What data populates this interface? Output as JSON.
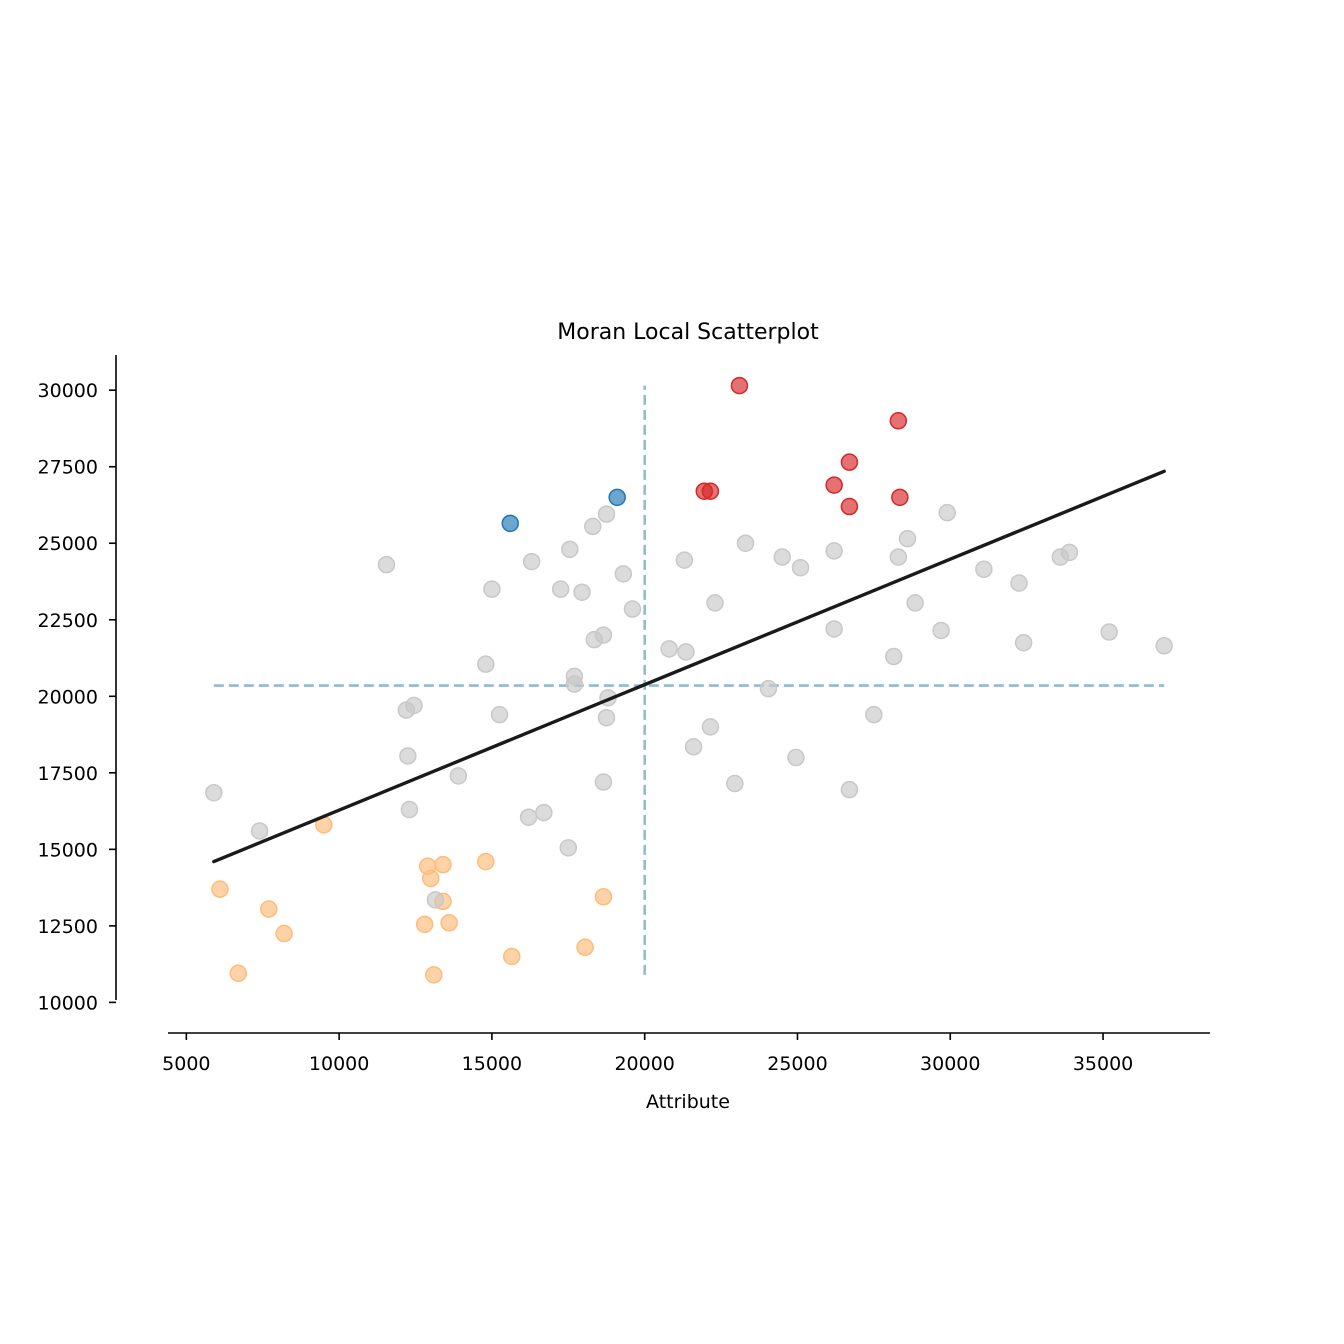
{
  "chart_data": {
    "type": "scatter",
    "title": "Moran Local Scatterplot",
    "xlabel": "Attribute",
    "ylabel": "",
    "xlim": [
      4400,
      38500
    ],
    "ylim": [
      9000,
      31150
    ],
    "xticks": [
      5000,
      10000,
      15000,
      20000,
      25000,
      30000,
      35000
    ],
    "yticks": [
      10000,
      12500,
      15000,
      17500,
      20000,
      22500,
      25000,
      27500,
      30000
    ],
    "xtick_labels": [
      "5000",
      "10000",
      "15000",
      "20000",
      "25000",
      "30000",
      "35000"
    ],
    "ytick_labels": [
      "10000",
      "12500",
      "15000",
      "17500",
      "20000",
      "22500",
      "25000",
      "27500",
      "30000"
    ],
    "grid": false,
    "mean_x": 20000,
    "mean_y": 20350,
    "vline_range": [
      10900,
      30150
    ],
    "hline_range": [
      5900,
      37000
    ],
    "fit_line": {
      "x": [
        5900,
        37000
      ],
      "y": [
        14600,
        27350
      ],
      "color": "#1a1a1a"
    },
    "reference_line_color": "#8fbcd4",
    "series": [
      {
        "color": "#d62728",
        "points": [
          [
            23100,
            30150
          ],
          [
            28300,
            29000
          ],
          [
            26700,
            27650
          ],
          [
            21950,
            26700
          ],
          [
            22150,
            26700
          ],
          [
            26200,
            26900
          ],
          [
            28350,
            26500
          ],
          [
            26700,
            26200
          ]
        ]
      },
      {
        "color": "#1f77b4",
        "points": [
          [
            15600,
            25650
          ],
          [
            19100,
            26500
          ]
        ]
      },
      {
        "color": "#ffbb78",
        "points": [
          [
            9500,
            15800
          ],
          [
            6100,
            13700
          ],
          [
            7700,
            13050
          ],
          [
            8200,
            12250
          ],
          [
            6700,
            10950
          ],
          [
            12900,
            14450
          ],
          [
            13400,
            14500
          ],
          [
            13000,
            14050
          ],
          [
            14800,
            14600
          ],
          [
            13400,
            13300
          ],
          [
            12800,
            12550
          ],
          [
            13600,
            12600
          ],
          [
            18650,
            13450
          ],
          [
            15650,
            11500
          ],
          [
            18050,
            11800
          ],
          [
            13100,
            10900
          ]
        ]
      },
      {
        "color": "#c8c8c8",
        "points": [
          [
            5900,
            16850
          ],
          [
            7400,
            15600
          ],
          [
            11550,
            24300
          ],
          [
            12200,
            19550
          ],
          [
            12450,
            19700
          ],
          [
            12250,
            18050
          ],
          [
            12300,
            16300
          ],
          [
            13150,
            13350
          ],
          [
            13900,
            17400
          ],
          [
            14800,
            21050
          ],
          [
            15000,
            23500
          ],
          [
            15250,
            19400
          ],
          [
            16200,
            16050
          ],
          [
            16300,
            24400
          ],
          [
            16700,
            16200
          ],
          [
            17250,
            23500
          ],
          [
            17500,
            15050
          ],
          [
            17550,
            24800
          ],
          [
            17700,
            20650
          ],
          [
            17700,
            20400
          ],
          [
            17950,
            23400
          ],
          [
            18300,
            25550
          ],
          [
            18350,
            21850
          ],
          [
            18650,
            17200
          ],
          [
            18650,
            22000
          ],
          [
            18750,
            25950
          ],
          [
            18800,
            19950
          ],
          [
            18750,
            19300
          ],
          [
            19300,
            24000
          ],
          [
            19600,
            22850
          ],
          [
            20800,
            21550
          ],
          [
            21300,
            24450
          ],
          [
            21350,
            21450
          ],
          [
            21600,
            18350
          ],
          [
            22150,
            19000
          ],
          [
            22300,
            23050
          ],
          [
            22950,
            17150
          ],
          [
            23300,
            25000
          ],
          [
            24050,
            20250
          ],
          [
            24500,
            24550
          ],
          [
            24950,
            18000
          ],
          [
            25100,
            24200
          ],
          [
            26200,
            24750
          ],
          [
            26200,
            22200
          ],
          [
            26700,
            16950
          ],
          [
            27500,
            19400
          ],
          [
            28150,
            21300
          ],
          [
            28300,
            24550
          ],
          [
            28600,
            25150
          ],
          [
            28850,
            23050
          ],
          [
            29700,
            22150
          ],
          [
            29900,
            26000
          ],
          [
            31100,
            24150
          ],
          [
            32250,
            23700
          ],
          [
            32400,
            21750
          ],
          [
            33600,
            24550
          ],
          [
            33900,
            24700
          ],
          [
            35200,
            22100
          ],
          [
            37000,
            21650
          ]
        ]
      }
    ]
  }
}
